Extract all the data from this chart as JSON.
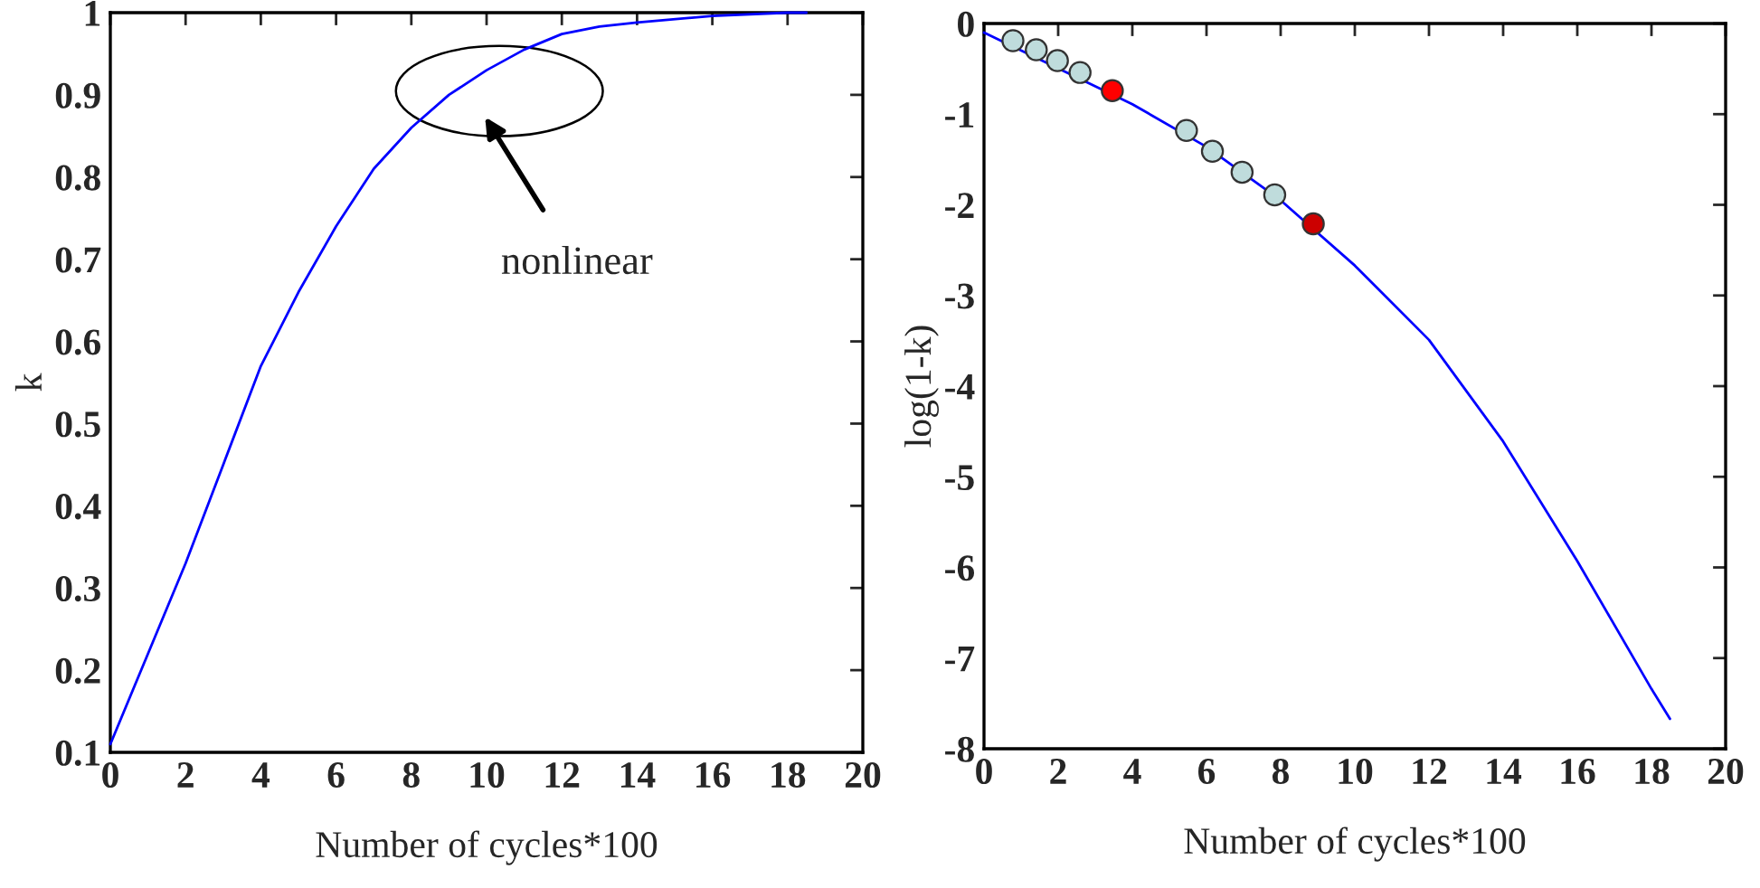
{
  "chart_data": [
    {
      "type": "line",
      "xlabel": "Number of cycles*100",
      "ylabel": "k",
      "series": [
        {
          "color": "#0000ff",
          "x": [
            0,
            1,
            2,
            3,
            4,
            5,
            6,
            7,
            8,
            9,
            10,
            11,
            12,
            13,
            14,
            16,
            18,
            18.5
          ],
          "values": [
            0.11,
            0.22,
            0.33,
            0.45,
            0.57,
            0.66,
            0.74,
            0.81,
            0.86,
            0.9,
            0.93,
            0.955,
            0.974,
            0.983,
            0.988,
            0.996,
            1.0,
            1.0
          ]
        }
      ],
      "xlim": [
        0,
        20
      ],
      "xticks": [
        0,
        2,
        4,
        6,
        8,
        10,
        12,
        14,
        16,
        18,
        20
      ],
      "ylim": [
        0.1,
        1
      ],
      "yticks": [
        0.1,
        0.2,
        0.3,
        0.4,
        0.5,
        0.6,
        0.7,
        0.8,
        0.9,
        1
      ],
      "annotations": [
        "nonlinear"
      ],
      "grid": false,
      "legend": false
    },
    {
      "type": "line",
      "xlabel": "Number of cycles*100",
      "ylabel": "log(1-k)",
      "series": [
        {
          "color": "#0000ff",
          "x": [
            0,
            4,
            6,
            8,
            10,
            12,
            14,
            16,
            18,
            18.5
          ],
          "values": [
            -0.1,
            -0.89,
            -1.36,
            -1.95,
            -2.67,
            -3.49,
            -4.61,
            -5.93,
            -7.34,
            -7.67
          ]
        },
        {
          "type": "scatter",
          "marker": "circle",
          "x": [
            0.78,
            1.41,
            1.98,
            2.59,
            3.46,
            5.46,
            6.16,
            6.96,
            7.84,
            8.88
          ],
          "values": [
            -0.19,
            -0.29,
            -0.41,
            -0.54,
            -0.74,
            -1.18,
            -1.41,
            -1.64,
            -1.89,
            -2.21
          ],
          "colors": [
            "#bfdcdc",
            "#bfdcdc",
            "#bfdcdc",
            "#bfdcdc",
            "#ff0000",
            "#bfdcdc",
            "#bfdcdc",
            "#bfdcdc",
            "#bfdcdc",
            "#cc0000"
          ]
        }
      ],
      "xlim": [
        0,
        20
      ],
      "xticks": [
        0,
        2,
        4,
        6,
        8,
        10,
        12,
        14,
        16,
        18,
        20
      ],
      "ylim": [
        -8,
        0
      ],
      "yticks": [
        {
          "value": -8,
          "label": "-8"
        },
        {
          "value": -7,
          "label": "-7"
        },
        {
          "value": -6,
          "label": "-6"
        },
        {
          "value": -5,
          "label": "-5"
        },
        {
          "value": -4,
          "label": "-4"
        },
        {
          "value": -3,
          "label": "-3"
        },
        {
          "value": -2,
          "label": "-2"
        },
        {
          "value": -1,
          "label": "-1"
        },
        0
      ],
      "grid": false,
      "legend": false
    }
  ]
}
